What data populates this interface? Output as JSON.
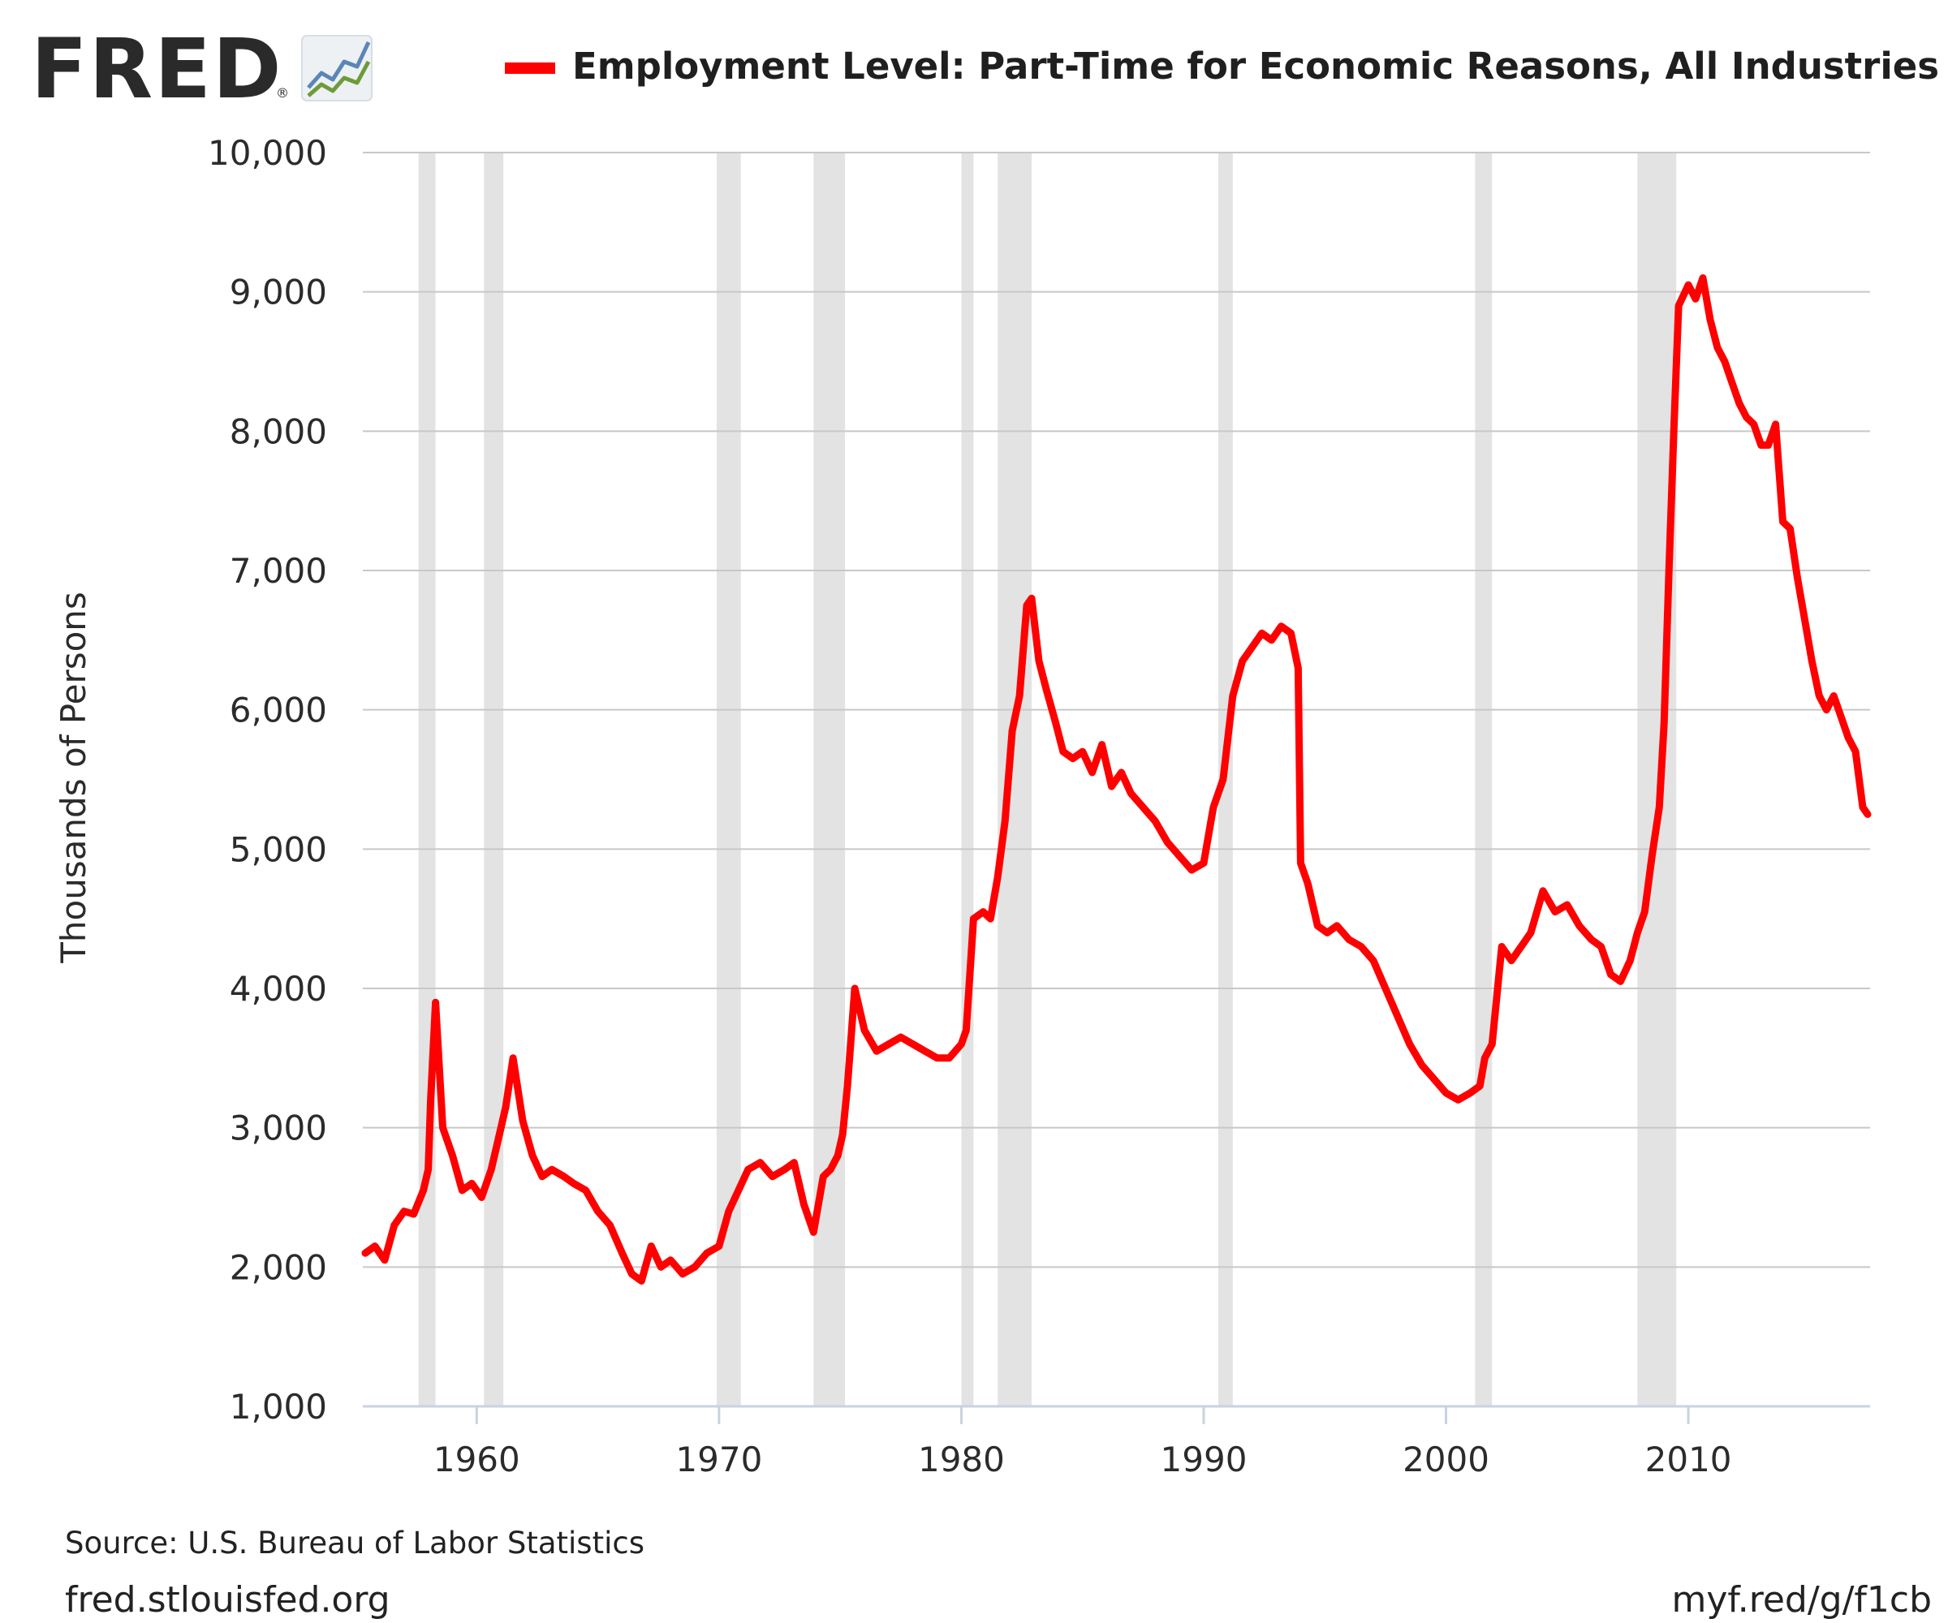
{
  "branding": {
    "logo_text": "FRED",
    "registered_mark": "®"
  },
  "footer": {
    "source": "Source: U.S. Bureau of Labor Statistics",
    "site_url": "fred.stlouisfed.org",
    "short_url": "myf.red/g/f1cb"
  },
  "colors": {
    "series": "#ff0000",
    "recession": "#e3e3e3",
    "grid": "#c8c8c8",
    "axis": "#c9d3e0",
    "logo_blue": "#5b86b7",
    "logo_green": "#6e9b3a"
  },
  "chart_data": {
    "type": "line",
    "title": "",
    "xlabel": "",
    "ylabel": "Thousands of Persons",
    "xlim": [
      1955.3,
      2017.5
    ],
    "ylim": [
      1000,
      10000
    ],
    "yticks": [
      1000,
      2000,
      3000,
      4000,
      5000,
      6000,
      7000,
      8000,
      9000,
      10000
    ],
    "ytick_labels": [
      "1,000",
      "2,000",
      "3,000",
      "4,000",
      "5,000",
      "6,000",
      "7,000",
      "8,000",
      "9,000",
      "10,000"
    ],
    "xticks": [
      1960,
      1970,
      1980,
      1990,
      2000,
      2010
    ],
    "xtick_labels": [
      "1960",
      "1970",
      "1980",
      "1990",
      "2000",
      "2010"
    ],
    "grid": true,
    "legend_position": "top",
    "recessions": [
      [
        1957.6,
        1958.3
      ],
      [
        1960.3,
        1961.1
      ],
      [
        1969.9,
        1970.9
      ],
      [
        1973.9,
        1975.2
      ],
      [
        1980.0,
        1980.5
      ],
      [
        1981.5,
        1982.9
      ],
      [
        1990.6,
        1991.2
      ],
      [
        2001.2,
        2001.9
      ],
      [
        2007.9,
        2009.5
      ]
    ],
    "series": [
      {
        "name": "Employment Level: Part-Time for Economic Reasons, All Industries",
        "x": [
          1955.4,
          1955.8,
          1956.2,
          1956.6,
          1957.0,
          1957.4,
          1957.8,
          1958.0,
          1958.1,
          1958.3,
          1958.6,
          1959.0,
          1959.4,
          1959.8,
          1960.2,
          1960.6,
          1961.0,
          1961.2,
          1961.5,
          1961.9,
          1962.3,
          1962.7,
          1963.1,
          1963.6,
          1964.0,
          1964.5,
          1965.0,
          1965.5,
          1966.0,
          1966.4,
          1966.8,
          1967.2,
          1967.6,
          1968.0,
          1968.5,
          1969.0,
          1969.5,
          1970.0,
          1970.4,
          1970.8,
          1971.2,
          1971.7,
          1972.2,
          1972.7,
          1973.1,
          1973.5,
          1973.9,
          1974.3,
          1974.6,
          1974.9,
          1975.1,
          1975.3,
          1975.6,
          1976.0,
          1976.5,
          1977.0,
          1977.5,
          1978.0,
          1978.5,
          1979.0,
          1979.5,
          1980.0,
          1980.2,
          1980.5,
          1980.9,
          1981.2,
          1981.5,
          1981.8,
          1982.1,
          1982.4,
          1982.7,
          1982.9,
          1983.2,
          1983.5,
          1983.9,
          1984.2,
          1984.6,
          1985.0,
          1985.4,
          1985.8,
          1986.2,
          1986.6,
          1987.0,
          1987.5,
          1988.0,
          1988.5,
          1989.0,
          1989.5,
          1990.0,
          1990.4,
          1990.8,
          1991.2,
          1991.6,
          1992.0,
          1992.4,
          1992.8,
          1993.2,
          1993.6,
          1993.9,
          1994.0,
          1994.3,
          1994.7,
          1995.1,
          1995.5,
          1996.0,
          1996.5,
          1997.0,
          1997.5,
          1998.0,
          1998.5,
          1999.0,
          1999.5,
          2000.0,
          2000.5,
          2001.0,
          2001.4,
          2001.6,
          2001.9,
          2002.3,
          2002.7,
          2003.1,
          2003.5,
          2004.0,
          2004.5,
          2005.0,
          2005.5,
          2006.0,
          2006.4,
          2006.8,
          2007.2,
          2007.6,
          2007.9,
          2008.2,
          2008.5,
          2008.8,
          2009.0,
          2009.2,
          2009.4,
          2009.6,
          2010.0,
          2010.3,
          2010.6,
          2010.9,
          2011.2,
          2011.5,
          2011.8,
          2012.1,
          2012.4,
          2012.7,
          2013.0,
          2013.3,
          2013.6,
          2013.9,
          2014.2,
          2014.5,
          2014.8,
          2015.1,
          2015.4,
          2015.7,
          2016.0,
          2016.3,
          2016.6,
          2016.9,
          2017.2,
          2017.4
        ],
        "values": [
          2100,
          2150,
          2050,
          2300,
          2400,
          2380,
          2550,
          2700,
          3200,
          3900,
          3000,
          2800,
          2550,
          2600,
          2500,
          2700,
          3000,
          3150,
          3500,
          3050,
          2800,
          2650,
          2700,
          2650,
          2600,
          2550,
          2400,
          2300,
          2100,
          1950,
          1900,
          2150,
          2000,
          2050,
          1950,
          2000,
          2100,
          2150,
          2400,
          2550,
          2700,
          2750,
          2650,
          2700,
          2750,
          2450,
          2250,
          2650,
          2700,
          2800,
          2950,
          3300,
          4000,
          3700,
          3550,
          3600,
          3650,
          3600,
          3550,
          3500,
          3500,
          3600,
          3700,
          4500,
          4550,
          4500,
          4800,
          5200,
          5850,
          6100,
          6750,
          6800,
          6350,
          6150,
          5900,
          5700,
          5650,
          5700,
          5550,
          5750,
          5450,
          5550,
          5400,
          5300,
          5200,
          5050,
          4950,
          4850,
          4900,
          5300,
          5500,
          6100,
          6350,
          6450,
          6550,
          6500,
          6600,
          6550,
          6300,
          4900,
          4750,
          4450,
          4400,
          4450,
          4350,
          4300,
          4200,
          4000,
          3800,
          3600,
          3450,
          3350,
          3250,
          3200,
          3250,
          3300,
          3500,
          3600,
          4300,
          4200,
          4300,
          4400,
          4700,
          4550,
          4600,
          4450,
          4350,
          4300,
          4100,
          4050,
          4200,
          4400,
          4550,
          4950,
          5300,
          5900,
          7000,
          8000,
          8900,
          9050,
          8950,
          9100,
          8800,
          8600,
          8500,
          8350,
          8200,
          8100,
          8050,
          7900,
          7900,
          8050,
          7350,
          7300,
          6950,
          6650,
          6350,
          6100,
          6000,
          6100,
          5950,
          5800,
          5700,
          5300,
          5250
        ]
      }
    ]
  }
}
